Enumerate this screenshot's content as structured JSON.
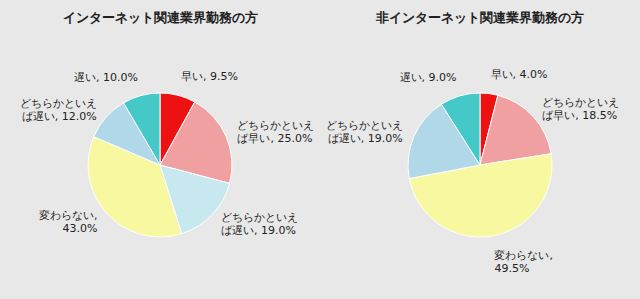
{
  "chart_data": [
    {
      "type": "pie",
      "title": "インターネット関連業界勤務の方",
      "values": [
        9.5,
        25.0,
        19.0,
        43.0,
        12.0,
        10.0
      ],
      "colors": [
        "#ee1111",
        "#f0a0a0",
        "#c8e8f0",
        "#f8f8a0",
        "#b0d8e8",
        "#44c8c8"
      ],
      "value_labels": [
        "早い, 9.5%",
        "どちらかといえ\nば早い, 25.0%",
        "どちらかといえ\nば遅い, 19.0%",
        "変わらない,\n43.0%",
        "どちらかといえ\nば遅い, 12.0%",
        "遅い, 10.0%"
      ],
      "data_labels": true
    },
    {
      "type": "pie",
      "title": "非インターネット関連業界勤務の方",
      "values": [
        4.0,
        18.5,
        49.5,
        19.0,
        9.0
      ],
      "colors": [
        "#ee1111",
        "#f0a0a0",
        "#f8f8a0",
        "#b0d8e8",
        "#44c8c8"
      ],
      "value_labels": [
        "早い, 4.0%",
        "どちらかといえ\nば早い, 18.5%",
        "変わらない,\n49.5%",
        "どちらかといえ\nば遅い, 19.0%",
        "遅い, 9.0%"
      ],
      "data_labels": true
    }
  ]
}
